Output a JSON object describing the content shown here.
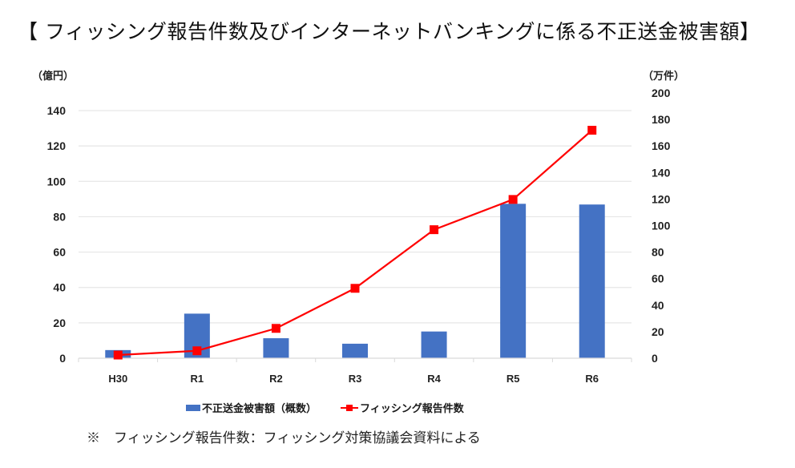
{
  "title": "【 フィッシング報告件数及びインターネットバンキングに係る不正送金被害額】",
  "note": "※　フィッシング報告件数：フィッシング対策協議会資料による",
  "colors": {
    "bar": "#4472c4",
    "line": "#ff0000",
    "grid": "#e6e6e6"
  },
  "chart_data": {
    "type": "bar+line",
    "title": "【 フィッシング報告件数及びインターネットバンキングに係る不正送金被害額】",
    "categories": [
      "H30",
      "R1",
      "R2",
      "R3",
      "R4",
      "R5",
      "R6"
    ],
    "y_left": {
      "label": "（億円）",
      "range": [
        0,
        140
      ],
      "ticks": [
        0,
        20,
        40,
        60,
        80,
        100,
        120,
        140
      ]
    },
    "y_right": {
      "label": "（万件）",
      "range": [
        0,
        200
      ],
      "ticks": [
        0,
        20,
        40,
        60,
        80,
        100,
        120,
        140,
        160,
        180,
        200
      ]
    },
    "grid": true,
    "legend_position": "bottom",
    "series": [
      {
        "name": "不正送金被害額（概数）",
        "type": "bar",
        "axis": "left",
        "values": [
          4.6,
          25.2,
          11.3,
          8.2,
          15.1,
          87.3,
          86.9
        ]
      },
      {
        "name": "フィッシング報告件数",
        "type": "line",
        "axis": "right",
        "marker": "square",
        "values": [
          2.4,
          5.6,
          22.5,
          52.7,
          96.9,
          119.7,
          171.9
        ]
      }
    ]
  }
}
